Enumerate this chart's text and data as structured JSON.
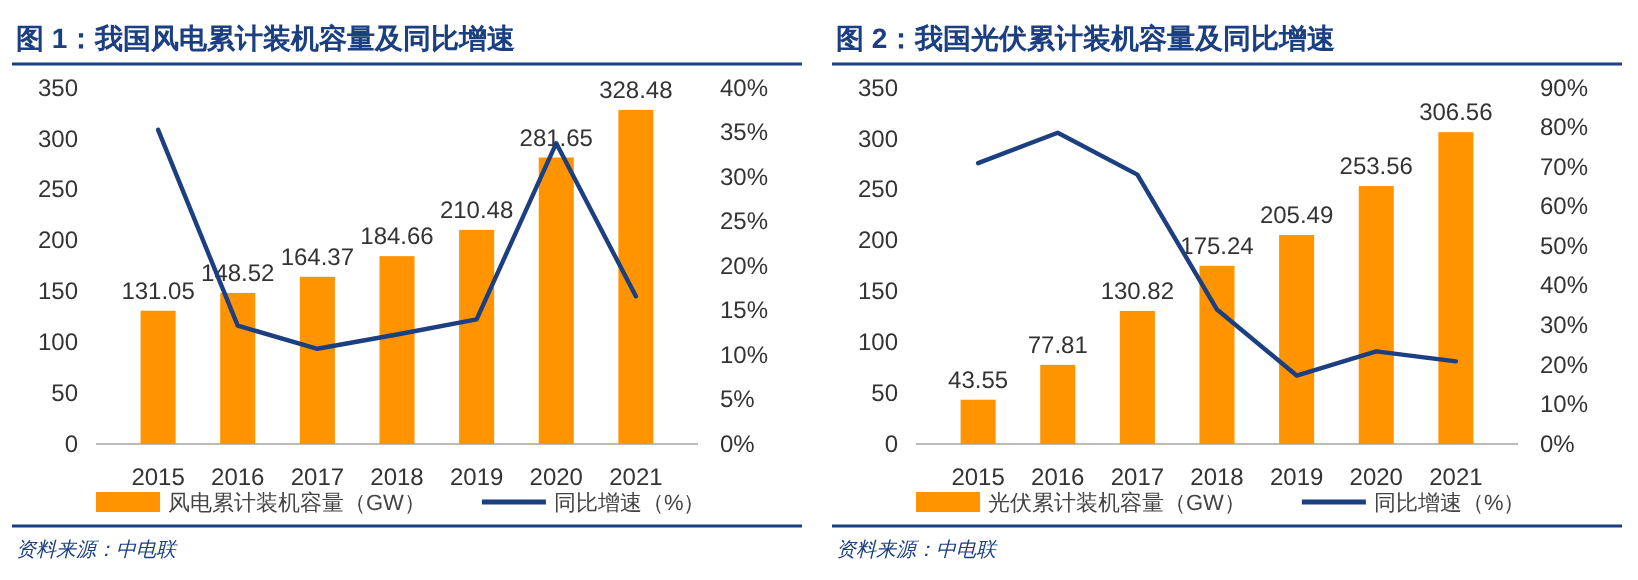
{
  "chart_data": [
    {
      "type": "bar",
      "title": "图 1：我国风电累计装机容量及同比增速",
      "categories": [
        "2015",
        "2016",
        "2017",
        "2018",
        "2019",
        "2020",
        "2021"
      ],
      "series": [
        {
          "name": "风电累计装机容量（GW）",
          "color": "#ff9300",
          "values": [
            131.05,
            148.52,
            164.37,
            184.66,
            210.48,
            281.65,
            328.48
          ],
          "value_labels": [
            "131.05",
            "148.52",
            "164.37",
            "184.66",
            "210.48",
            "281.65",
            "328.48"
          ]
        },
        {
          "name": "同比增速（%）",
          "type": "line",
          "axis": "y2",
          "color": "#1b3f80",
          "values": [
            35.3,
            13.3,
            10.7,
            12.3,
            14.0,
            33.8,
            16.6
          ]
        }
      ],
      "ylim": [
        0,
        350
      ],
      "yticks": [
        0,
        50,
        100,
        150,
        200,
        250,
        300,
        350
      ],
      "y2lim": [
        0,
        40
      ],
      "y2ticks": [
        {
          "value": 0,
          "label": "0%"
        },
        {
          "value": 5,
          "label": "5%"
        },
        {
          "value": 10,
          "label": "10%"
        },
        {
          "value": 15,
          "label": "15%"
        },
        {
          "value": 20,
          "label": "20%"
        },
        {
          "value": 25,
          "label": "25%"
        },
        {
          "value": 30,
          "label": "30%"
        },
        {
          "value": 35,
          "label": "35%"
        },
        {
          "value": 40,
          "label": "40%"
        }
      ],
      "legend": "bottom",
      "annotations": [
        "资料来源：中电联"
      ]
    },
    {
      "type": "bar",
      "title": "图 2：我国光伏累计装机容量及同比增速",
      "categories": [
        "2015",
        "2016",
        "2017",
        "2018",
        "2019",
        "2020",
        "2021"
      ],
      "series": [
        {
          "name": "光伏累计装机容量（GW）",
          "color": "#ff9300",
          "values": [
            43.55,
            77.81,
            130.82,
            175.24,
            205.49,
            253.56,
            306.56
          ],
          "value_labels": [
            "43.55",
            "77.81",
            "130.82",
            "175.24",
            "205.49",
            "253.56",
            "306.56"
          ]
        },
        {
          "name": "同比增速（%）",
          "type": "line",
          "axis": "y2",
          "color": "#1b3f80",
          "values": [
            71,
            78.7,
            68.1,
            34.0,
            17.3,
            23.4,
            20.9
          ]
        }
      ],
      "ylim": [
        0,
        350
      ],
      "yticks": [
        0,
        50,
        100,
        150,
        200,
        250,
        300,
        350
      ],
      "y2lim": [
        0,
        90
      ],
      "y2ticks": [
        {
          "value": 0,
          "label": "0%"
        },
        {
          "value": 10,
          "label": "10%"
        },
        {
          "value": 20,
          "label": "20%"
        },
        {
          "value": 30,
          "label": "30%"
        },
        {
          "value": 40,
          "label": "40%"
        },
        {
          "value": 50,
          "label": "50%"
        },
        {
          "value": 60,
          "label": "60%"
        },
        {
          "value": 70,
          "label": "70%"
        },
        {
          "value": 80,
          "label": "80%"
        },
        {
          "value": 90,
          "label": "90%"
        }
      ],
      "legend": "bottom",
      "annotations": [
        "资料来源：中电联"
      ]
    }
  ]
}
